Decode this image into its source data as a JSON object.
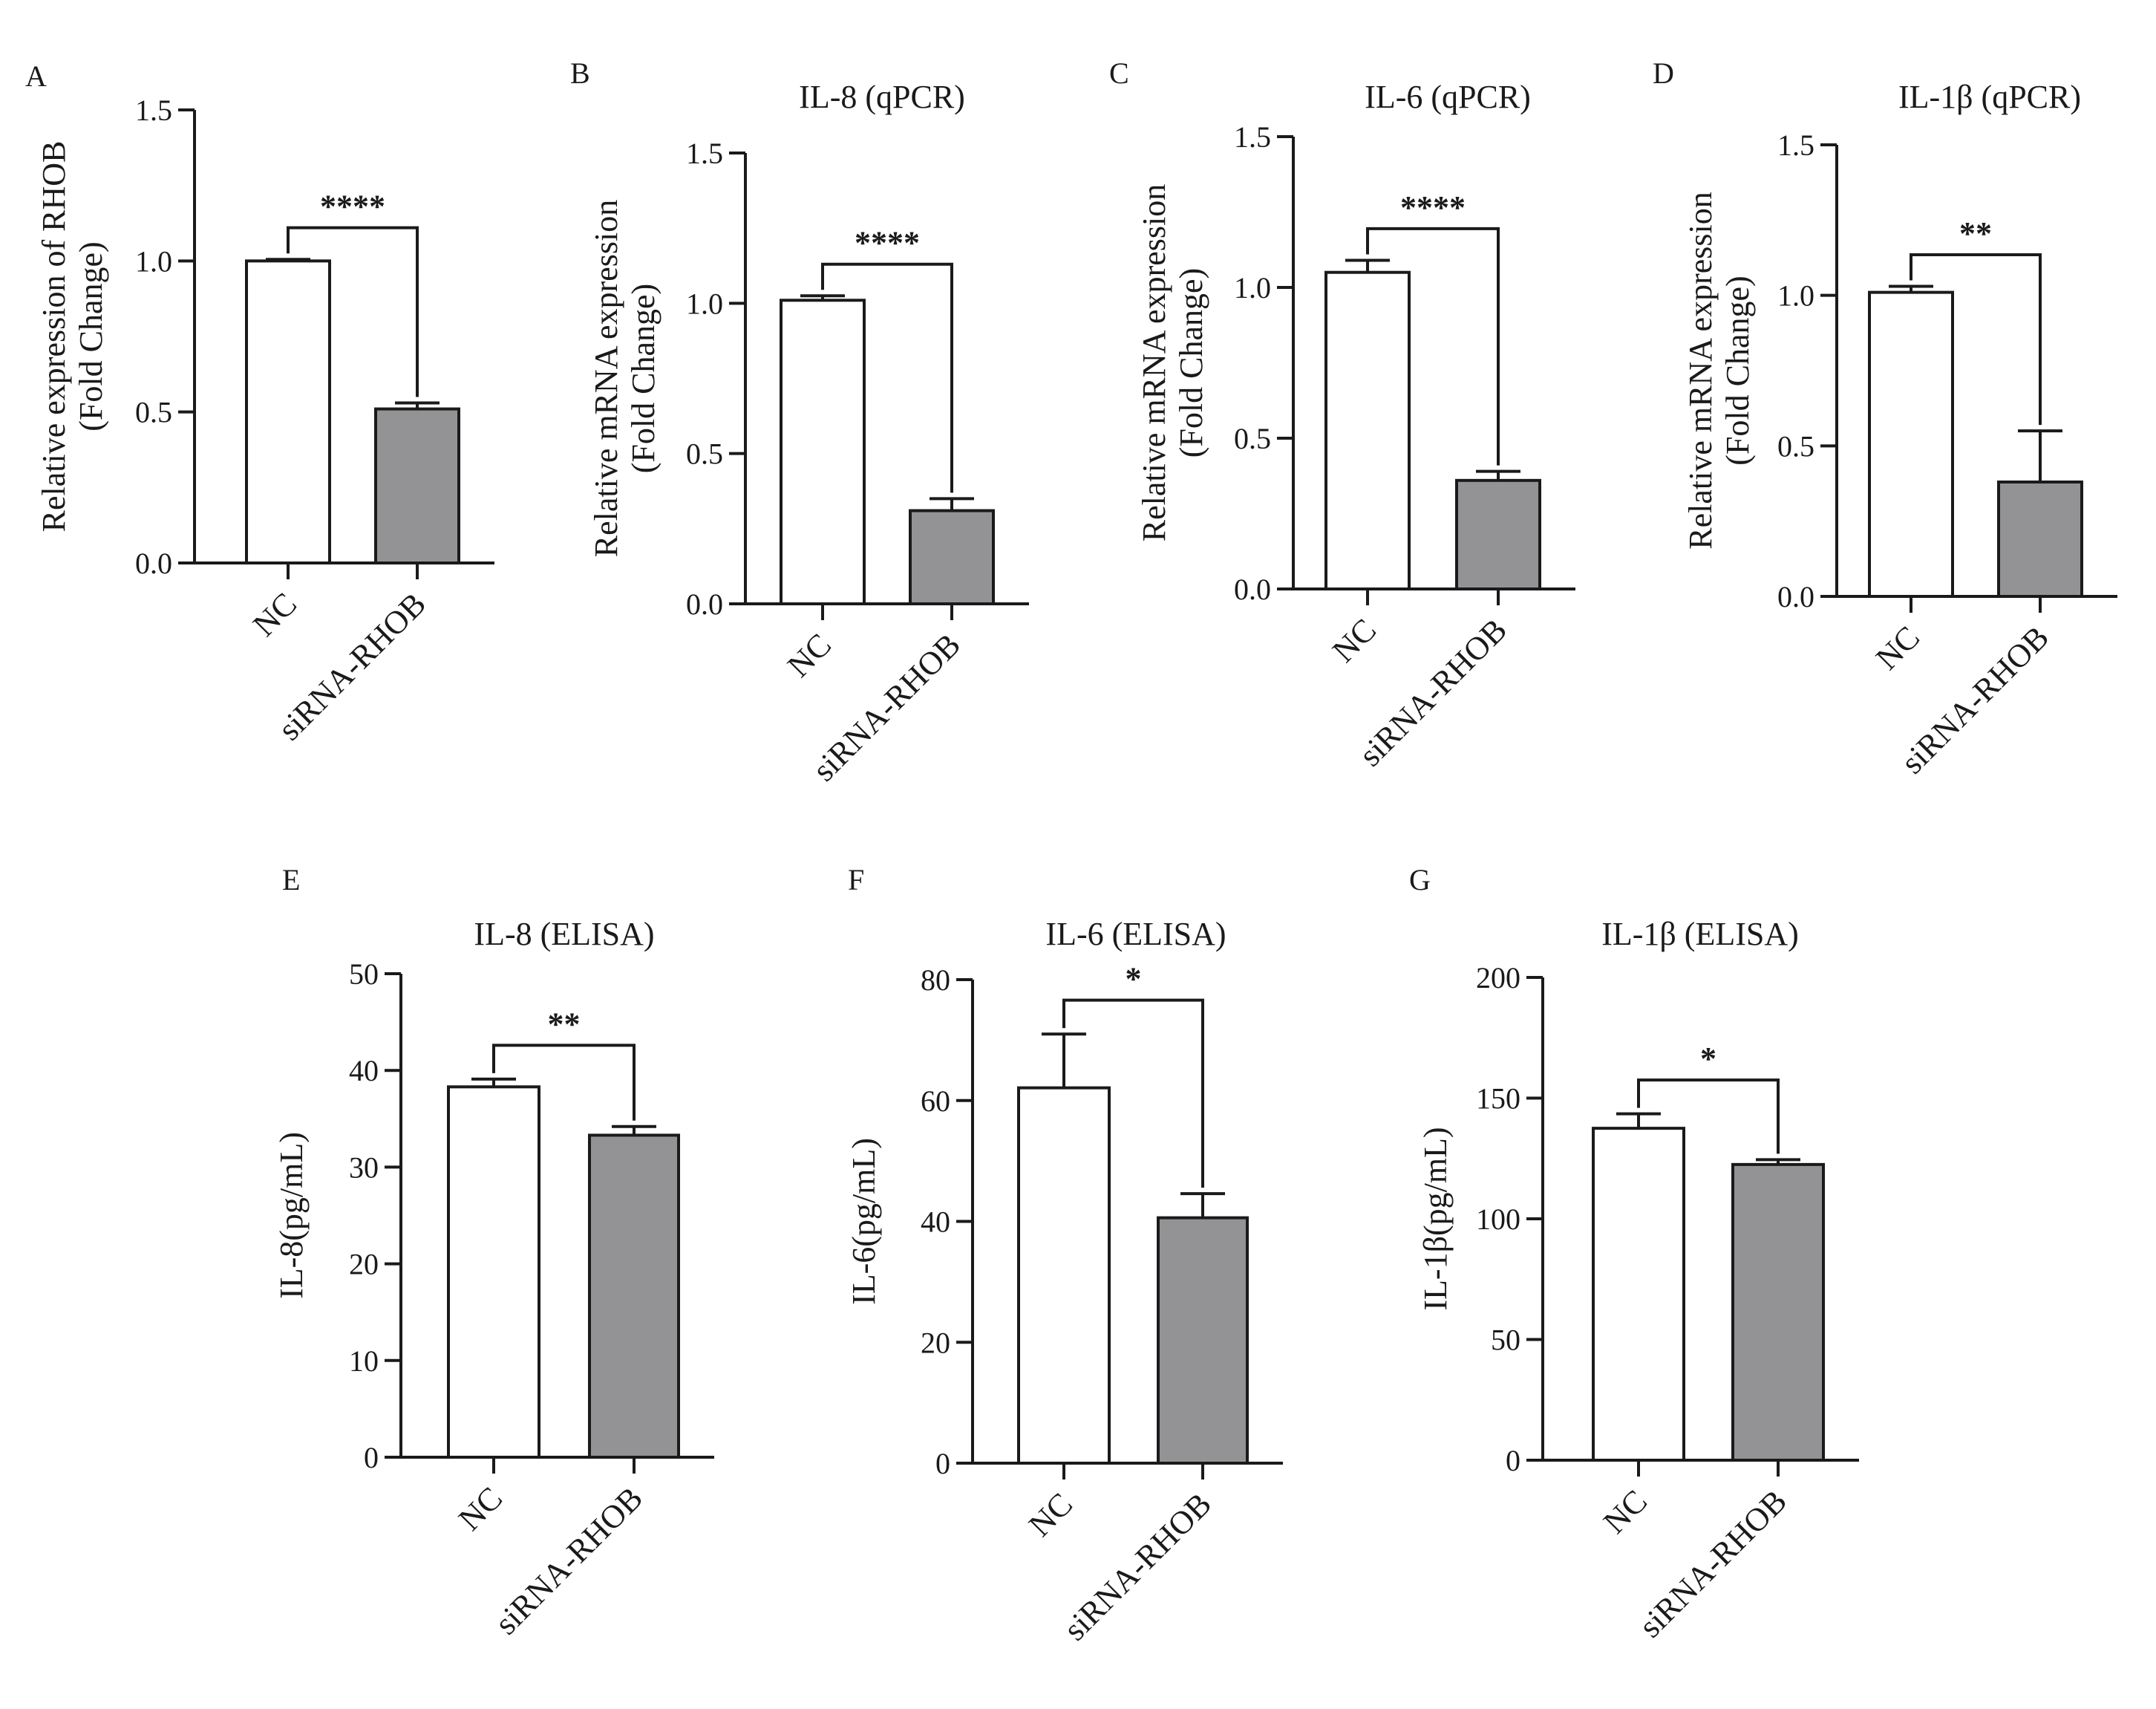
{
  "colors": {
    "bar_nc": "#ffffff",
    "bar_sirna": "#939395",
    "stroke": "#1a1a1a"
  },
  "chart_data": [
    {
      "panel": "A",
      "type": "bar",
      "title": "",
      "ylabel": [
        "Relative expression of RHOB",
        "(Fold Change)"
      ],
      "ylim": [
        0,
        1.5
      ],
      "yticks": [
        0.0,
        0.5,
        1.0,
        1.5
      ],
      "ytick_labels": [
        "0.0",
        "0.5",
        "1.0",
        "1.5"
      ],
      "categories": [
        "NC",
        "siRNA-RHOB"
      ],
      "values": [
        1.0,
        0.51
      ],
      "errors": [
        0.005,
        0.02
      ],
      "significance": "****"
    },
    {
      "panel": "B",
      "type": "bar",
      "title": "IL-8 (qPCR)",
      "ylabel": [
        "Relative mRNA expression",
        "(Fold Change)"
      ],
      "ylim": [
        0,
        1.5
      ],
      "yticks": [
        0.0,
        0.5,
        1.0,
        1.5
      ],
      "ytick_labels": [
        "0.0",
        "0.5",
        "1.0",
        "1.5"
      ],
      "categories": [
        "NC",
        "siRNA-RHOB"
      ],
      "values": [
        1.01,
        0.31
      ],
      "errors": [
        0.015,
        0.04
      ],
      "significance": "****"
    },
    {
      "panel": "C",
      "type": "bar",
      "title": "IL-6 (qPCR)",
      "ylabel": [
        "Relative mRNA expression",
        "(Fold Change)"
      ],
      "ylim": [
        0,
        1.5
      ],
      "yticks": [
        0.0,
        0.5,
        1.0,
        1.5
      ],
      "ytick_labels": [
        "0.0",
        "0.5",
        "1.0",
        "1.5"
      ],
      "categories": [
        "NC",
        "siRNA-RHOB"
      ],
      "values": [
        1.05,
        0.36
      ],
      "errors": [
        0.04,
        0.03
      ],
      "significance": "****"
    },
    {
      "panel": "D",
      "type": "bar",
      "title": "IL-1β (qPCR)",
      "ylabel": [
        "Relative mRNA expression",
        "(Fold Change)"
      ],
      "ylim": [
        0,
        1.5
      ],
      "yticks": [
        0.0,
        0.5,
        1.0,
        1.5
      ],
      "ytick_labels": [
        "0.0",
        "0.5",
        "1.0",
        "1.5"
      ],
      "categories": [
        "NC",
        "siRNA-RHOB"
      ],
      "values": [
        1.01,
        0.38
      ],
      "errors": [
        0.02,
        0.17
      ],
      "significance": "**"
    },
    {
      "panel": "E",
      "type": "bar",
      "title": "IL-8 (ELISA)",
      "ylabel": [
        "IL-8(pg/mL)"
      ],
      "ylim": [
        0,
        50
      ],
      "yticks": [
        0,
        10,
        20,
        30,
        40,
        50
      ],
      "ytick_labels": [
        "0",
        "10",
        "20",
        "30",
        "40",
        "50"
      ],
      "categories": [
        "NC",
        "siRNA-RHOB"
      ],
      "values": [
        38.3,
        33.3
      ],
      "errors": [
        0.8,
        0.9
      ],
      "significance": "**"
    },
    {
      "panel": "F",
      "type": "bar",
      "title": "IL-6 (ELISA)",
      "ylabel": [
        "IL-6(pg/mL)"
      ],
      "ylim": [
        0,
        80
      ],
      "yticks": [
        0,
        20,
        40,
        60,
        80
      ],
      "ytick_labels": [
        "0",
        "20",
        "40",
        "60",
        "80"
      ],
      "categories": [
        "NC",
        "siRNA-RHOB"
      ],
      "values": [
        62.1,
        40.6
      ],
      "errors": [
        8.9,
        4.0
      ],
      "significance": "*"
    },
    {
      "panel": "G",
      "type": "bar",
      "title": "IL-1β (ELISA)",
      "ylabel": [
        "IL-1β(pg/mL)"
      ],
      "ylim": [
        0,
        200
      ],
      "yticks": [
        0,
        50,
        100,
        150,
        200
      ],
      "ytick_labels": [
        "0",
        "50",
        "100",
        "150",
        "200"
      ],
      "categories": [
        "NC",
        "siRNA-RHOB"
      ],
      "values": [
        137.5,
        122.5
      ],
      "errors": [
        6.0,
        2.0
      ],
      "significance": "*"
    }
  ]
}
